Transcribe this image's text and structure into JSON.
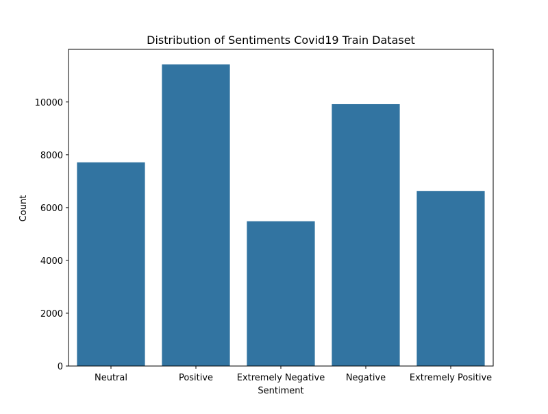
{
  "chart_data": {
    "type": "bar",
    "title": "Distribution of Sentiments Covid19 Train Dataset",
    "xlabel": "Sentiment",
    "ylabel": "Count",
    "categories": [
      "Neutral",
      "Positive",
      "Extremely Negative",
      "Negative",
      "Extremely Positive"
    ],
    "values": [
      7713,
      11422,
      5481,
      9917,
      6624
    ],
    "ylim": [
      0,
      11993
    ],
    "yticks": [
      0,
      2000,
      4000,
      6000,
      8000,
      10000
    ],
    "grid": false,
    "bar_color": "#3274a1"
  }
}
